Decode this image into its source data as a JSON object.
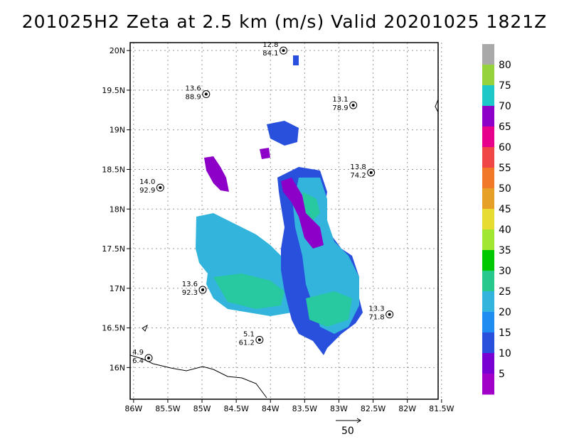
{
  "title": "201025H2  Zeta at 2.5 km (m/s) Valid 20201025  1821Z",
  "map": {
    "lon_range": [
      -86.05,
      -81.55
    ],
    "lat_range": [
      15.6,
      20.1
    ],
    "x_ticks": [
      "86W",
      "85.5W",
      "85W",
      "84.5W",
      "84W",
      "83.5W",
      "83W",
      "82.5W",
      "82W",
      "81.5W"
    ],
    "y_ticks": [
      "20N",
      "19.5N",
      "19N",
      "18.5N",
      "18N",
      "17.5N",
      "17N",
      "16.5N",
      "16N"
    ],
    "grid": true
  },
  "stations": [
    {
      "top": "12.8",
      "bottom": "84.1",
      "lon": -83.81,
      "lat": 20.0
    },
    {
      "top": "13.6",
      "bottom": "88.9",
      "lon": -84.94,
      "lat": 19.45
    },
    {
      "top": "13.1",
      "bottom": "78.9",
      "lon": -82.79,
      "lat": 19.31
    },
    {
      "top": "13.8",
      "bottom": "74.2",
      "lon": -82.53,
      "lat": 18.46
    },
    {
      "top": "14.0",
      "bottom": "92.9",
      "lon": -85.61,
      "lat": 18.27
    },
    {
      "top": "13.6",
      "bottom": "92.3",
      "lon": -84.99,
      "lat": 16.98
    },
    {
      "top": "13.3",
      "bottom": "71.8",
      "lon": -82.26,
      "lat": 16.67
    },
    {
      "top": "5.1",
      "bottom": "61.2",
      "lon": -84.16,
      "lat": 16.35
    },
    {
      "top": "4.9",
      "bottom": "6.4",
      "lon": -85.78,
      "lat": 16.12
    }
  ],
  "colorbar": {
    "labels": [
      "80",
      "75",
      "70",
      "65",
      "60",
      "55",
      "50",
      "45",
      "40",
      "35",
      "30",
      "25",
      "20",
      "15",
      "10",
      "5"
    ],
    "colors": [
      "#a9a9a9",
      "#96d23c",
      "#1ec8c8",
      "#8c00c8",
      "#e6008c",
      "#f04646",
      "#f07828",
      "#e6a028",
      "#e6dc32",
      "#a0e632",
      "#00c800",
      "#28c88c",
      "#32b4dc",
      "#1e8cf0",
      "#2850dc",
      "#7800d2",
      "#a000c8"
    ]
  },
  "reference_vector": {
    "label": "50"
  },
  "colors": {
    "frame": "#000000",
    "grid": "#888888",
    "coast": "#000000"
  }
}
